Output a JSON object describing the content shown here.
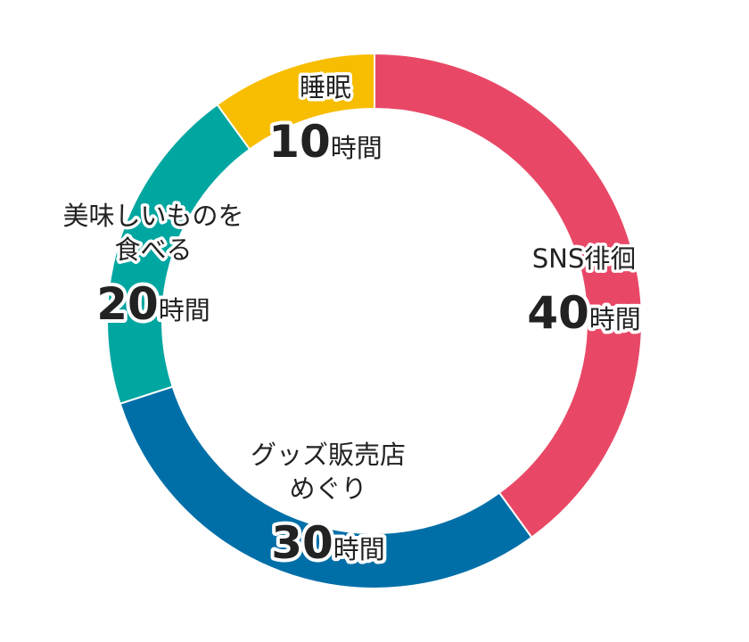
{
  "chart_data": {
    "type": "pie",
    "title": "",
    "slices": [
      {
        "name": "SNS徘徊",
        "label_lines": [
          "SNS徘徊"
        ],
        "value": 40,
        "value_text": "40",
        "unit": "時間",
        "color": "#e84866"
      },
      {
        "name": "グッズ販売店めぐり",
        "label_lines": [
          "グッズ販売店",
          "めぐり"
        ],
        "value": 30,
        "value_text": "30",
        "unit": "時間",
        "color": "#006fa8"
      },
      {
        "name": "美味しいものを食べる",
        "label_lines": [
          "美味しいものを",
          "食べる"
        ],
        "value": 20,
        "value_text": "20",
        "unit": "時間",
        "color": "#00a6a0"
      },
      {
        "name": "睡眠",
        "label_lines": [
          "睡眠"
        ],
        "value": 10,
        "value_text": "10",
        "unit": "時間",
        "color": "#f7bd00"
      }
    ],
    "style": "donut",
    "start": "top, clockwise",
    "legend": "none"
  }
}
